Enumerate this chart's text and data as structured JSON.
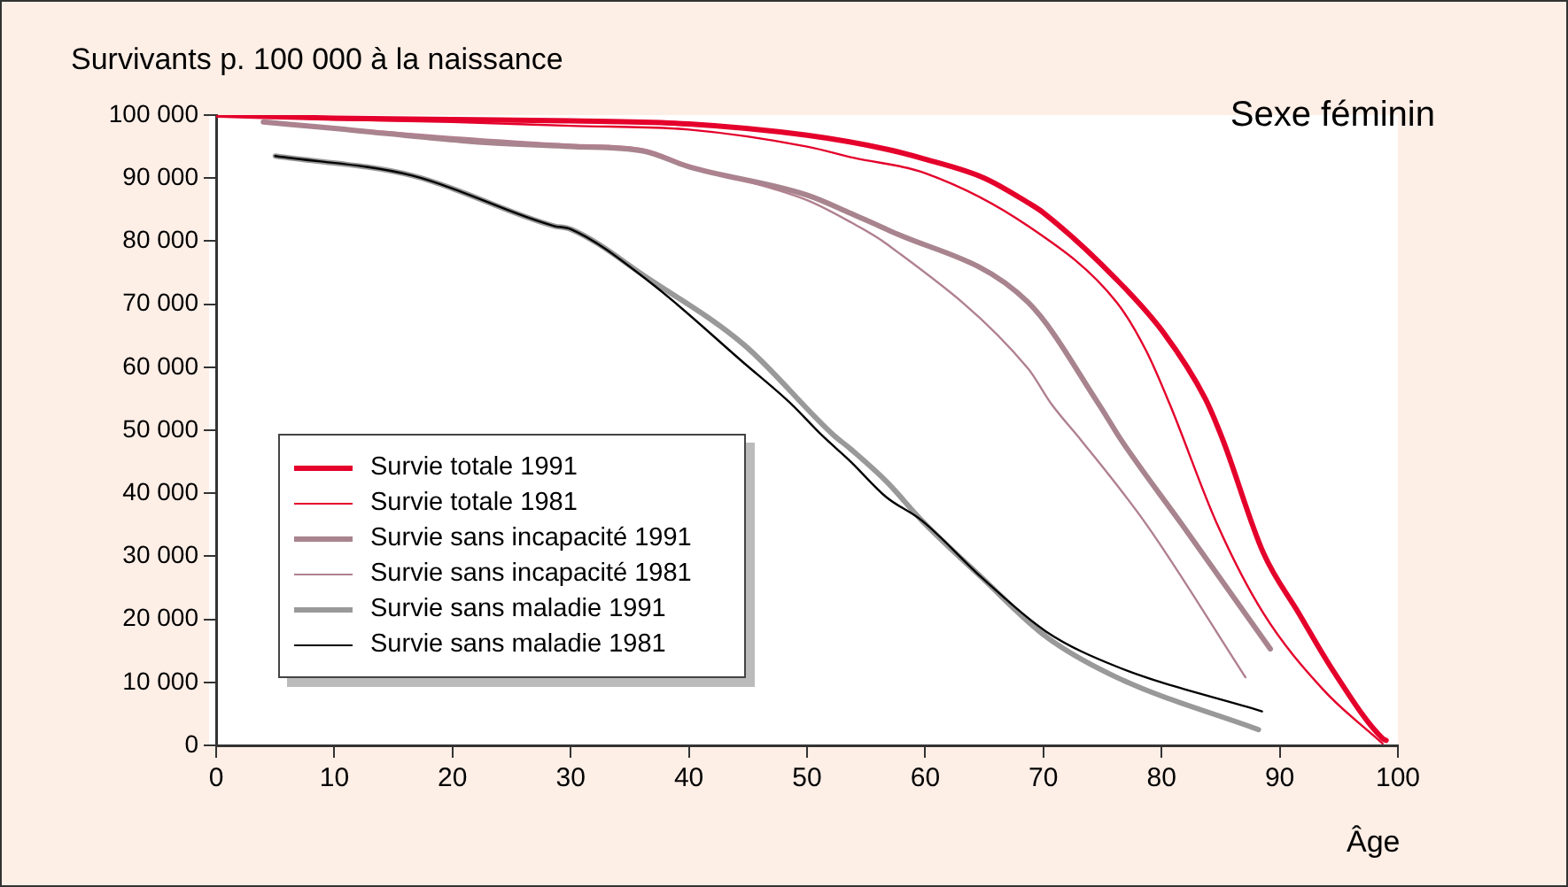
{
  "chart_data": {
    "type": "line",
    "ylabel": "Survivants p. 100 000 à la naissance",
    "xlabel": "Âge",
    "annotations": [
      "Sexe féminin"
    ],
    "xlim": [
      0,
      100
    ],
    "xticks": [
      0,
      10,
      20,
      30,
      40,
      50,
      60,
      70,
      80,
      90,
      100
    ],
    "ylim": [
      0,
      100000
    ],
    "yticks": [
      {
        "value": 0,
        "label": "0"
      },
      {
        "value": 10000,
        "label": "10 000"
      },
      {
        "value": 20000,
        "label": "20 000"
      },
      {
        "value": 30000,
        "label": "30 000"
      },
      {
        "value": 40000,
        "label": "40 000"
      },
      {
        "value": 50000,
        "label": "50 000"
      },
      {
        "value": 60000,
        "label": "60 000"
      },
      {
        "value": 70000,
        "label": "70 000"
      },
      {
        "value": 80000,
        "label": "80 000"
      },
      {
        "value": 90000,
        "label": "90 000"
      },
      {
        "value": 100000,
        "label": "100 000"
      }
    ],
    "grid": false,
    "legend": "bottom left",
    "marker": "none",
    "line_style": "solid",
    "series": [
      {
        "name": "Survie totale 1991",
        "color": "#e4002b",
        "x": [
          0,
          10,
          20,
          30,
          40,
          50,
          56.7,
          60,
          65,
          68.7,
          70,
          76.2,
          80.2,
          83.7,
          85.2,
          88.6,
          91.6,
          94.6,
          98.7,
          99
        ],
        "values": [
          100000,
          99500,
          99300,
          99100,
          98600,
          96800,
          94600,
          93000,
          90000,
          86100,
          84500,
          73900,
          65400,
          55000,
          48400,
          30600,
          21000,
          11600,
          1100,
          800
        ]
      },
      {
        "name": "Survie totale 1981",
        "color": "#e4002b",
        "x": [
          0,
          10,
          20,
          30,
          40,
          50,
          54,
          60,
          68.7,
          76.2,
          78.7,
          80.7,
          84.7,
          88.6,
          93.7,
          98.7
        ],
        "values": [
          100000,
          99300,
          98900,
          98300,
          97700,
          95000,
          93200,
          90800,
          82400,
          70300,
          62600,
          54100,
          35100,
          21000,
          8800,
          300
        ]
      },
      {
        "name": "Survie sans incapacité 1991",
        "color": "#a8848f",
        "x": [
          4,
          10,
          21.7,
          30,
          36.1,
          40,
          50,
          53.7,
          56.7,
          68.7,
          74.7,
          76.6,
          81.7,
          89.2
        ],
        "values": [
          98900,
          97900,
          95800,
          95000,
          94300,
          91800,
          87300,
          84400,
          81900,
          70300,
          54100,
          48400,
          35100,
          15300
        ]
      },
      {
        "name": "Survie sans incapacité 1981",
        "color": "#b0808f",
        "x": [
          4,
          10,
          20,
          30,
          36.1,
          40,
          50,
          53.7,
          56.7,
          68.7,
          70.7,
          73.2,
          78.7,
          87.1
        ],
        "values": [
          98900,
          98000,
          96500,
          95300,
          94600,
          92000,
          86500,
          83000,
          79600,
          59800,
          54100,
          48400,
          35100,
          10800
        ]
      },
      {
        "name": "Survie sans maladie 1991",
        "color": "#999999",
        "x": [
          5,
          16.6,
          28.6,
          30,
          36.7,
          44.7,
          52.2,
          53.7,
          56.7,
          59.7,
          64.8,
          70.2,
          76.2,
          88.2
        ],
        "values": [
          93500,
          90400,
          82400,
          81900,
          73900,
          63500,
          49300,
          47000,
          41900,
          35700,
          26600,
          17300,
          10800,
          2500
        ]
      },
      {
        "name": "Survie sans maladie 1981",
        "color": "#000000",
        "x": [
          5,
          16.6,
          28.6,
          30,
          36.7,
          44.7,
          48.7,
          51.2,
          53.7,
          56.7,
          59.7,
          64.8,
          70.2,
          76.2,
          88.5
        ],
        "values": [
          93500,
          90400,
          82400,
          81900,
          73500,
          60600,
          54100,
          49300,
          45000,
          39400,
          35700,
          26600,
          18100,
          12500,
          5400
        ]
      }
    ]
  }
}
